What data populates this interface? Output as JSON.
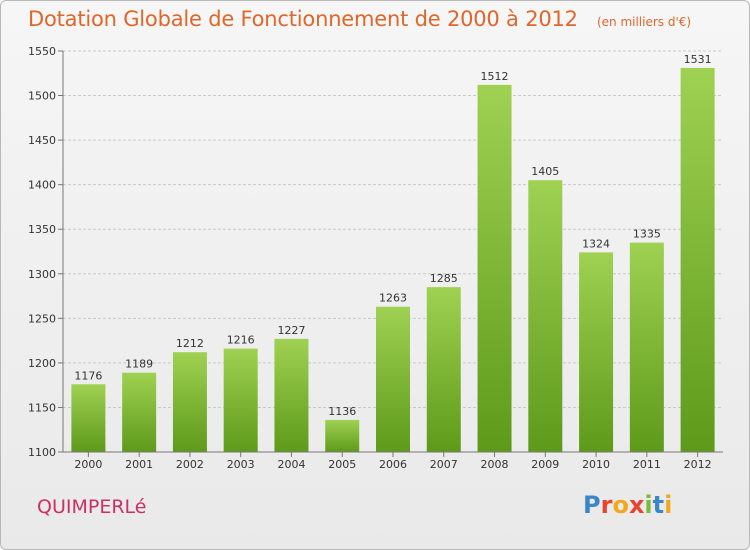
{
  "header": {
    "title": "Dotation Globale de Fonctionnement de 2000 à 2012",
    "subtitle": "(en milliers d'€)"
  },
  "footer": {
    "commune": "QUIMPERLé",
    "brand": "Proxiti"
  },
  "colors": {
    "title": "#e0662a",
    "commune": "#cc2f62",
    "bar_top": "#9fd152",
    "bar_bottom": "#5e9a1a"
  },
  "chart_data": {
    "type": "bar",
    "categories": [
      "2000",
      "2001",
      "2002",
      "2003",
      "2004",
      "2005",
      "2006",
      "2007",
      "2008",
      "2009",
      "2010",
      "2011",
      "2012"
    ],
    "values": [
      1176,
      1189,
      1212,
      1216,
      1227,
      1136,
      1263,
      1285,
      1512,
      1405,
      1324,
      1335,
      1531
    ],
    "data_labels": [
      "1176",
      "1189",
      "1212",
      "1216",
      "1227",
      "1136",
      "1263",
      "1285",
      "1512",
      "1405",
      "1324",
      "1335",
      "1531"
    ],
    "title": "Dotation Globale de Fonctionnement de 2000 à 2012",
    "subtitle": "(en milliers d'€)",
    "ylim": [
      1100,
      1550
    ],
    "yticks": [
      1100,
      1150,
      1200,
      1250,
      1300,
      1350,
      1400,
      1450,
      1500,
      1550
    ],
    "grid": true,
    "legend": "none"
  }
}
